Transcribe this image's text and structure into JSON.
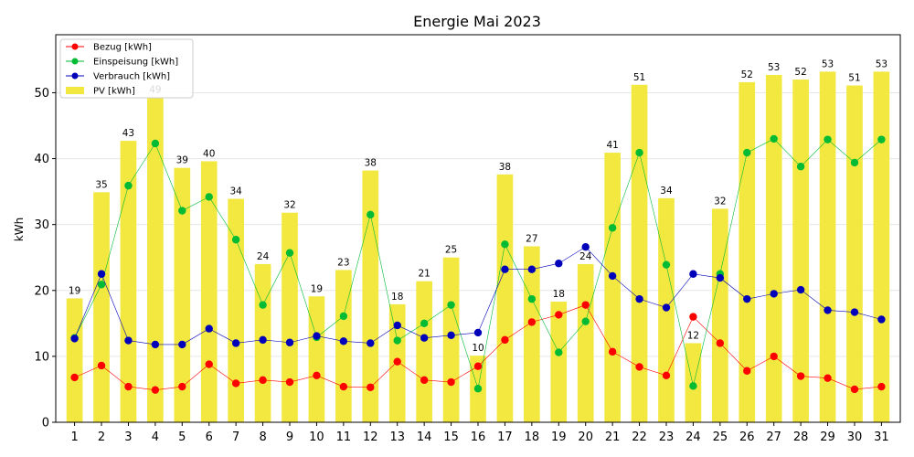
{
  "chart_data": {
    "type": "bar",
    "title": "Energie Mai 2023",
    "xlabel": "",
    "ylabel": "kWh",
    "ylim": [
      0,
      58.8
    ],
    "yticks": [
      0,
      10,
      20,
      30,
      40,
      50
    ],
    "grid": "horizontal",
    "legend_position": "top-left",
    "categories": [
      "1",
      "2",
      "3",
      "4",
      "5",
      "6",
      "7",
      "8",
      "9",
      "10",
      "11",
      "12",
      "13",
      "14",
      "15",
      "16",
      "17",
      "18",
      "19",
      "20",
      "21",
      "22",
      "23",
      "24",
      "25",
      "26",
      "27",
      "28",
      "29",
      "30",
      "31"
    ],
    "bar_series": {
      "name": "PV [kWh]",
      "color": "#f3e83f",
      "values": [
        18.8,
        34.9,
        42.7,
        49.3,
        38.6,
        39.6,
        33.9,
        24.0,
        31.8,
        19.1,
        23.1,
        38.2,
        17.9,
        21.4,
        25.0,
        10.1,
        37.6,
        26.7,
        18.3,
        24.0,
        40.9,
        51.2,
        34.0,
        12.0,
        32.4,
        51.6,
        52.7,
        52.0,
        53.2,
        51.1,
        53.2
      ],
      "labels": [
        "19",
        "35",
        "43",
        "49",
        "39",
        "40",
        "34",
        "24",
        "32",
        "19",
        "23",
        "38",
        "18",
        "21",
        "25",
        "10",
        "38",
        "27",
        "18",
        "24",
        "41",
        "51",
        "34",
        "12",
        "32",
        "52",
        "53",
        "52",
        "53",
        "51",
        "53"
      ]
    },
    "series": [
      {
        "name": "Bezug [kWh]",
        "color": "#ff0000",
        "values": [
          6.8,
          8.6,
          5.4,
          4.9,
          5.4,
          8.8,
          5.9,
          6.4,
          6.1,
          7.1,
          5.4,
          5.3,
          9.2,
          6.4,
          6.1,
          8.5,
          12.5,
          15.2,
          16.3,
          17.8,
          10.7,
          8.4,
          7.1,
          16.0,
          12.0,
          7.8,
          10.0,
          7.0,
          6.7,
          5.0,
          5.4
        ]
      },
      {
        "name": "Einspeisung [kWh]",
        "color": "#00bb33",
        "values": [
          12.8,
          20.9,
          35.9,
          42.3,
          32.1,
          34.2,
          27.7,
          17.8,
          25.7,
          12.9,
          16.1,
          31.5,
          12.4,
          15.0,
          17.8,
          5.1,
          27.0,
          18.7,
          10.6,
          15.3,
          29.5,
          40.9,
          23.9,
          5.5,
          22.5,
          40.9,
          43.0,
          38.8,
          42.9,
          39.4,
          42.9
        ]
      },
      {
        "name": "Verbrauch [kWh]",
        "color": "#0000bb",
        "values": [
          12.7,
          22.5,
          12.4,
          11.8,
          11.8,
          14.2,
          12.0,
          12.5,
          12.1,
          13.1,
          12.3,
          12.0,
          14.7,
          12.8,
          13.2,
          13.6,
          23.2,
          23.2,
          24.1,
          26.6,
          22.2,
          18.7,
          17.4,
          22.5,
          21.9,
          18.7,
          19.5,
          20.1,
          17.0,
          16.7,
          15.6
        ]
      }
    ]
  }
}
